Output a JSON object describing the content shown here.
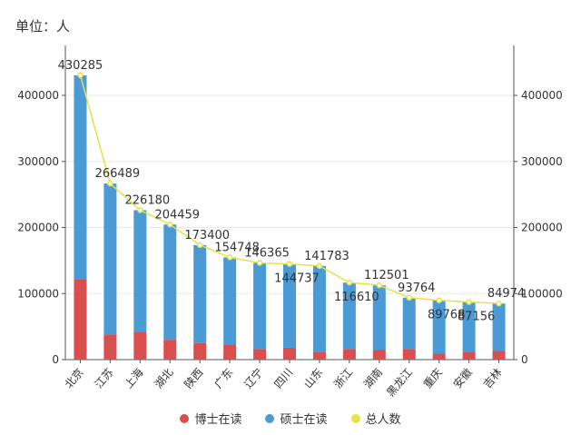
{
  "chart_data": {
    "type": "bar",
    "stacked": true,
    "title": "",
    "unit_label": "单位：人",
    "xlabel": "",
    "ylabel": "",
    "ylim": [
      0,
      470000
    ],
    "yticks": [
      0,
      100000,
      200000,
      300000,
      400000
    ],
    "ytick_labels": [
      "0",
      "100000",
      "200000",
      "300000",
      "400000"
    ],
    "grid": true,
    "legend_position": "bottom",
    "categories": [
      "北京",
      "江苏",
      "上海",
      "湖北",
      "陕西",
      "广东",
      "辽宁",
      "四川",
      "山东",
      "浙江",
      "湖南",
      "黑龙江",
      "重庆",
      "安徽",
      "吉林"
    ],
    "series": [
      {
        "name": "博士在读",
        "type": "bar",
        "color": "#d94e4e",
        "values": [
          122000,
          38000,
          42000,
          30000,
          25000,
          22000,
          16000,
          18000,
          12000,
          16000,
          15000,
          16000,
          9000,
          11000,
          13000
        ]
      },
      {
        "name": "硕士在读",
        "type": "bar",
        "color": "#4a9ad6",
        "values": [
          308285,
          228489,
          184180,
          174459,
          148400,
          132748,
          130365,
          126737,
          129783,
          100610,
          97501,
          77764,
          80768,
          76156,
          71974
        ]
      },
      {
        "name": "总人数",
        "type": "line",
        "color": "#e6e04a",
        "values": [
          430285,
          266489,
          226180,
          204459,
          173400,
          154748,
          146365,
          144737,
          141783,
          116610,
          112501,
          93764,
          89768,
          87156,
          84974
        ],
        "labels": [
          "430285",
          "266489",
          "226180",
          "204459",
          "173400",
          "154748",
          "146365",
          "144737",
          "141783",
          "116610",
          "112501",
          "93764",
          "89768",
          "87156",
          "84974"
        ]
      }
    ]
  }
}
